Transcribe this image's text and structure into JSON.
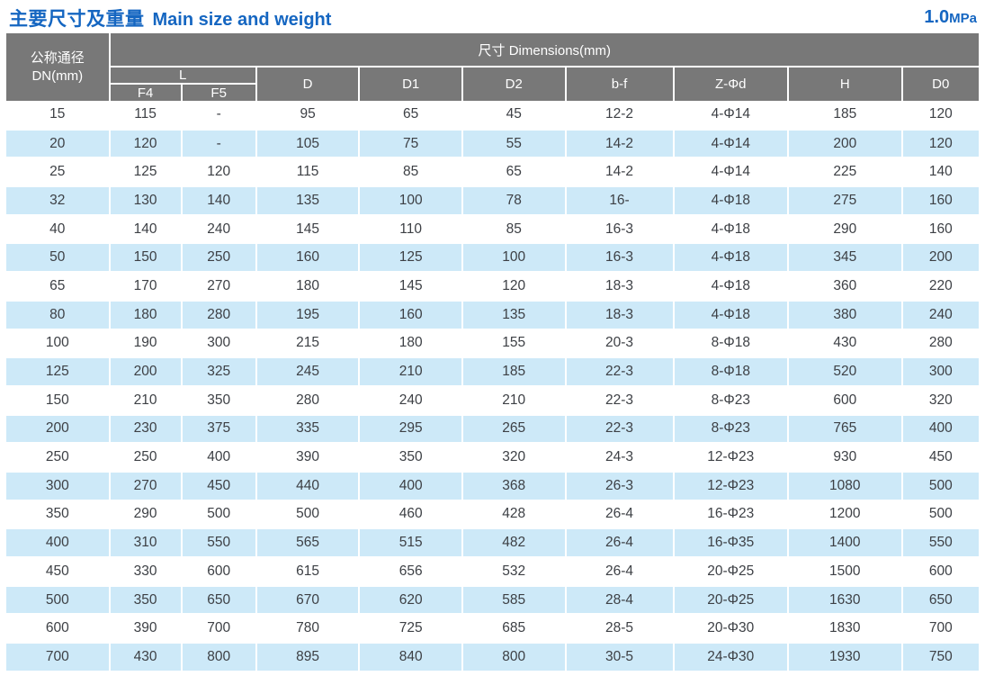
{
  "title": {
    "zh": "主要尺寸及重量",
    "en": "Main size and weight"
  },
  "pressure": {
    "value": "1.0",
    "unit": "MPa"
  },
  "colors": {
    "title_blue": "#1566c1",
    "header_gray": "#787878",
    "row_blue": "#cde9f8",
    "cell_text": "#3d4045"
  },
  "table": {
    "header": {
      "dn_label_line1": "公称通径",
      "dn_label_line2": "DN(mm)",
      "dims_group_label": "尺寸 Dimensions(mm)",
      "l_group_label": "L",
      "l_sub_labels": [
        "F4",
        "F5"
      ],
      "dim_col_labels": [
        "D",
        "D1",
        "D2",
        "b-f",
        "Z-Φd",
        "H",
        "D0"
      ]
    },
    "column_keys": [
      "dn",
      "l-f4",
      "l-f5",
      "d",
      "d1",
      "d2",
      "b-f",
      "z-phi-d",
      "h",
      "d0"
    ],
    "rows": [
      [
        "15",
        "115",
        "-",
        "95",
        "65",
        "45",
        "12-2",
        "4-Φ14",
        "185",
        "120"
      ],
      [
        "20",
        "120",
        "-",
        "105",
        "75",
        "55",
        "14-2",
        "4-Φ14",
        "200",
        "120"
      ],
      [
        "25",
        "125",
        "120",
        "115",
        "85",
        "65",
        "14-2",
        "4-Φ14",
        "225",
        "140"
      ],
      [
        "32",
        "130",
        "140",
        "135",
        "100",
        "78",
        "16-",
        "4-Φ18",
        "275",
        "160"
      ],
      [
        "40",
        "140",
        "240",
        "145",
        "110",
        "85",
        "16-3",
        "4-Φ18",
        "290",
        "160"
      ],
      [
        "50",
        "150",
        "250",
        "160",
        "125",
        "100",
        "16-3",
        "4-Φ18",
        "345",
        "200"
      ],
      [
        "65",
        "170",
        "270",
        "180",
        "145",
        "120",
        "18-3",
        "4-Φ18",
        "360",
        "220"
      ],
      [
        "80",
        "180",
        "280",
        "195",
        "160",
        "135",
        "18-3",
        "4-Φ18",
        "380",
        "240"
      ],
      [
        "100",
        "190",
        "300",
        "215",
        "180",
        "155",
        "20-3",
        "8-Φ18",
        "430",
        "280"
      ],
      [
        "125",
        "200",
        "325",
        "245",
        "210",
        "185",
        "22-3",
        "8-Φ18",
        "520",
        "300"
      ],
      [
        "150",
        "210",
        "350",
        "280",
        "240",
        "210",
        "22-3",
        "8-Φ23",
        "600",
        "320"
      ],
      [
        "200",
        "230",
        "375",
        "335",
        "295",
        "265",
        "22-3",
        "8-Φ23",
        "765",
        "400"
      ],
      [
        "250",
        "250",
        "400",
        "390",
        "350",
        "320",
        "24-3",
        "12-Φ23",
        "930",
        "450"
      ],
      [
        "300",
        "270",
        "450",
        "440",
        "400",
        "368",
        "26-3",
        "12-Φ23",
        "1080",
        "500"
      ],
      [
        "350",
        "290",
        "500",
        "500",
        "460",
        "428",
        "26-4",
        "16-Φ23",
        "1200",
        "500"
      ],
      [
        "400",
        "310",
        "550",
        "565",
        "515",
        "482",
        "26-4",
        "16-Φ35",
        "1400",
        "550"
      ],
      [
        "450",
        "330",
        "600",
        "615",
        "656",
        "532",
        "26-4",
        "20-Φ25",
        "1500",
        "600"
      ],
      [
        "500",
        "350",
        "650",
        "670",
        "620",
        "585",
        "28-4",
        "20-Φ25",
        "1630",
        "650"
      ],
      [
        "600",
        "390",
        "700",
        "780",
        "725",
        "685",
        "28-5",
        "20-Φ30",
        "1830",
        "700"
      ],
      [
        "700",
        "430",
        "800",
        "895",
        "840",
        "800",
        "30-5",
        "24-Φ30",
        "1930",
        "750"
      ]
    ]
  }
}
